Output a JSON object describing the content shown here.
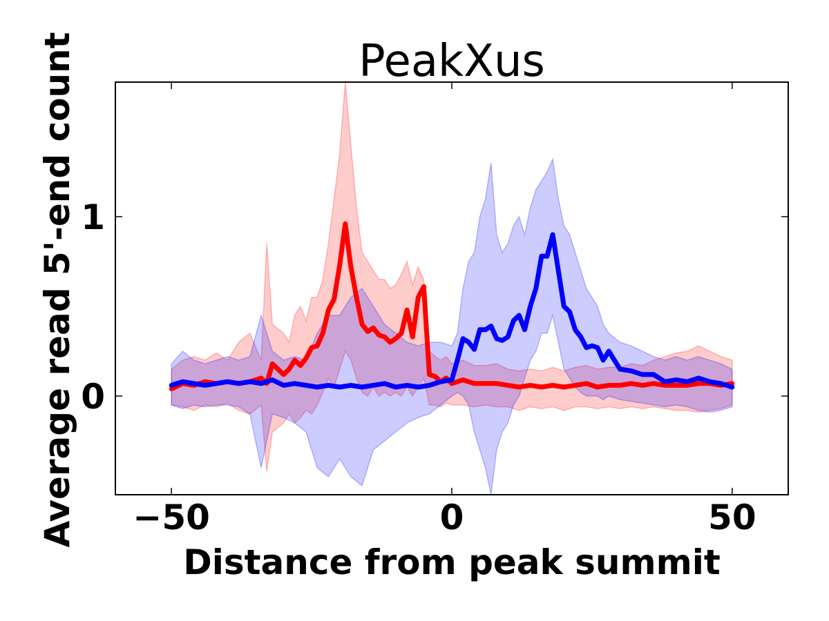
{
  "chart_data": {
    "type": "line",
    "title": "PeakXus",
    "xlabel": "Distance from peak summit",
    "ylabel": "Average read 5'-end count",
    "xlim": [
      -60,
      60
    ],
    "ylim": [
      -0.55,
      1.75
    ],
    "xticks": [
      -50,
      0,
      50
    ],
    "xtick_labels": [
      "−50",
      "0",
      "50"
    ],
    "yticks": [
      0,
      1
    ],
    "ytick_labels": [
      "0",
      "1"
    ],
    "grid": false,
    "legend": "none",
    "series": [
      {
        "color": "#ff0000",
        "band_color": "#ff0000",
        "band_opacity": 0.2,
        "x": [
          -50,
          -48,
          -46,
          -44,
          -42,
          -40,
          -38,
          -36,
          -34,
          -33,
          -32,
          -30,
          -29,
          -28,
          -27,
          -26,
          -25,
          -24,
          -23,
          -22,
          -21,
          -20,
          -19,
          -18,
          -17,
          -16,
          -15,
          -14,
          -13,
          -12,
          -11,
          -10,
          -9,
          -8,
          -7,
          -6,
          -5,
          -4,
          -3,
          -2,
          -1,
          0,
          2,
          4,
          6,
          8,
          10,
          12,
          14,
          16,
          18,
          20,
          22,
          24,
          26,
          28,
          30,
          32,
          34,
          36,
          38,
          40,
          42,
          44,
          46,
          48,
          50
        ],
        "values": [
          0.04,
          0.07,
          0.06,
          0.08,
          0.07,
          0.08,
          0.07,
          0.08,
          0.1,
          0.07,
          0.18,
          0.12,
          0.15,
          0.2,
          0.17,
          0.21,
          0.27,
          0.28,
          0.35,
          0.48,
          0.54,
          0.73,
          0.96,
          0.72,
          0.55,
          0.4,
          0.36,
          0.38,
          0.34,
          0.33,
          0.3,
          0.32,
          0.35,
          0.48,
          0.33,
          0.55,
          0.61,
          0.12,
          0.11,
          0.08,
          0.1,
          0.07,
          0.09,
          0.07,
          0.07,
          0.07,
          0.06,
          0.05,
          0.06,
          0.05,
          0.06,
          0.05,
          0.06,
          0.07,
          0.05,
          0.06,
          0.06,
          0.07,
          0.06,
          0.07,
          0.06,
          0.06,
          0.06,
          0.07,
          0.07,
          0.06,
          0.07
        ],
        "upper": [
          0.15,
          0.2,
          0.22,
          0.2,
          0.24,
          0.2,
          0.3,
          0.35,
          0.2,
          0.85,
          0.4,
          0.35,
          0.3,
          0.45,
          0.5,
          0.42,
          0.55,
          0.55,
          0.65,
          0.85,
          1.1,
          1.35,
          1.75,
          1.4,
          1.05,
          0.8,
          0.75,
          0.7,
          0.65,
          0.65,
          0.6,
          0.62,
          0.68,
          0.75,
          0.62,
          0.72,
          0.65,
          0.25,
          0.22,
          0.2,
          0.22,
          0.18,
          0.2,
          0.17,
          0.17,
          0.18,
          0.15,
          0.14,
          0.15,
          0.14,
          0.16,
          0.14,
          0.16,
          0.17,
          0.15,
          0.16,
          0.16,
          0.18,
          0.17,
          0.2,
          0.22,
          0.24,
          0.25,
          0.28,
          0.25,
          0.22,
          0.2
        ],
        "lower": [
          -0.05,
          -0.06,
          -0.08,
          -0.05,
          -0.06,
          -0.04,
          -0.08,
          -0.1,
          -0.05,
          -0.42,
          -0.2,
          -0.15,
          -0.1,
          -0.15,
          -0.12,
          -0.08,
          -0.1,
          -0.05,
          0.02,
          0.1,
          0.05,
          0.15,
          0.25,
          0.2,
          0.1,
          0.02,
          0.0,
          0.05,
          0.0,
          0.02,
          0.0,
          0.02,
          0.0,
          0.05,
          0.0,
          0.05,
          0.1,
          -0.05,
          -0.05,
          -0.06,
          -0.04,
          -0.05,
          -0.05,
          -0.06,
          -0.05,
          -0.06,
          -0.06,
          -0.08,
          -0.06,
          -0.07,
          -0.06,
          -0.08,
          -0.06,
          -0.06,
          -0.07,
          -0.06,
          -0.07,
          -0.06,
          -0.07,
          -0.06,
          -0.07,
          -0.08,
          -0.08,
          -0.09,
          -0.08,
          -0.07,
          -0.05
        ]
      },
      {
        "color": "#0000ff",
        "band_color": "#0000ff",
        "band_opacity": 0.2,
        "x": [
          -50,
          -48,
          -46,
          -44,
          -42,
          -40,
          -38,
          -36,
          -34,
          -32,
          -30,
          -28,
          -26,
          -24,
          -22,
          -20,
          -18,
          -16,
          -14,
          -12,
          -10,
          -8,
          -6,
          -4,
          -2,
          0,
          1,
          2,
          3,
          4,
          5,
          6,
          7,
          8,
          9,
          10,
          11,
          12,
          13,
          14,
          15,
          16,
          17,
          18,
          19,
          20,
          21,
          22,
          23,
          24,
          25,
          26,
          27,
          28,
          30,
          32,
          34,
          36,
          38,
          40,
          42,
          44,
          46,
          48,
          50
        ],
        "values": [
          0.06,
          0.08,
          0.07,
          0.06,
          0.07,
          0.08,
          0.07,
          0.08,
          0.07,
          0.09,
          0.06,
          0.07,
          0.06,
          0.05,
          0.06,
          0.05,
          0.06,
          0.05,
          0.06,
          0.07,
          0.05,
          0.06,
          0.05,
          0.06,
          0.08,
          0.09,
          0.2,
          0.32,
          0.3,
          0.26,
          0.37,
          0.37,
          0.39,
          0.32,
          0.31,
          0.33,
          0.42,
          0.45,
          0.37,
          0.5,
          0.6,
          0.78,
          0.78,
          0.9,
          0.7,
          0.5,
          0.47,
          0.37,
          0.33,
          0.27,
          0.28,
          0.27,
          0.2,
          0.25,
          0.15,
          0.14,
          0.12,
          0.12,
          0.08,
          0.09,
          0.08,
          0.1,
          0.08,
          0.07,
          0.05
        ],
        "upper": [
          0.18,
          0.25,
          0.2,
          0.18,
          0.2,
          0.22,
          0.2,
          0.22,
          0.45,
          0.25,
          0.2,
          0.22,
          0.2,
          0.35,
          0.45,
          0.45,
          0.55,
          0.6,
          0.5,
          0.4,
          0.35,
          0.3,
          0.28,
          0.3,
          0.3,
          0.28,
          0.35,
          0.6,
          0.75,
          0.8,
          1.0,
          1.1,
          1.3,
          0.9,
          0.8,
          0.85,
          0.95,
          1.0,
          0.9,
          1.05,
          1.15,
          1.2,
          1.25,
          1.32,
          1.1,
          0.95,
          0.9,
          0.8,
          0.7,
          0.6,
          0.55,
          0.5,
          0.4,
          0.35,
          0.3,
          0.28,
          0.25,
          0.22,
          0.2,
          0.22,
          0.2,
          0.22,
          0.2,
          0.18,
          0.15
        ],
        "lower": [
          -0.05,
          -0.07,
          -0.05,
          -0.06,
          -0.05,
          -0.05,
          -0.06,
          -0.1,
          -0.4,
          -0.1,
          -0.12,
          -0.15,
          -0.2,
          -0.4,
          -0.45,
          -0.35,
          -0.45,
          -0.5,
          -0.3,
          -0.25,
          -0.2,
          -0.15,
          -0.12,
          -0.1,
          -0.05,
          0.0,
          0.02,
          0.0,
          -0.05,
          -0.2,
          -0.3,
          -0.4,
          -0.55,
          -0.3,
          -0.2,
          -0.15,
          -0.05,
          0.0,
          0.1,
          0.2,
          0.25,
          0.35,
          0.35,
          0.45,
          0.3,
          0.15,
          0.1,
          0.05,
          0.02,
          0.0,
          0.0,
          0.0,
          -0.02,
          0.0,
          -0.02,
          -0.03,
          -0.04,
          -0.05,
          -0.06,
          -0.05,
          -0.06,
          -0.08,
          -0.09,
          -0.08,
          -0.06
        ]
      }
    ]
  }
}
